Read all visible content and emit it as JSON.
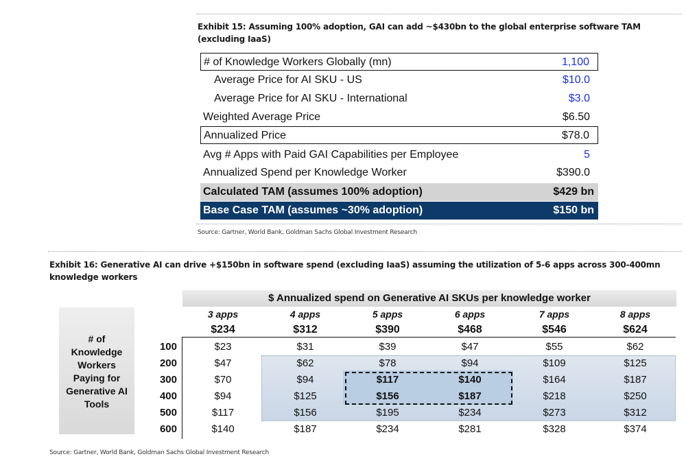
{
  "exhibit15": {
    "title_line1": "Exhibit 15: Assuming 100% adoption, GAI can add ~$430bn to the global enterprise software TAM",
    "title_line2": "(excluding IaaS)",
    "rows": [
      {
        "label": "# of Knowledge Workers Globally (mn)",
        "value": "1,100"
      },
      {
        "label": "Average Price for AI SKU - US",
        "value": "$10.0"
      },
      {
        "label": "Average Price for AI SKU - International",
        "value": "$3.0"
      },
      {
        "label": "Weighted Average Price",
        "value": "$6.50"
      },
      {
        "label": "Annualized Price",
        "value": "$78.0"
      },
      {
        "label": "Avg # Apps with Paid GAI Capabilities per Employee",
        "value": "5"
      },
      {
        "label": "Annualized Spend per Knowledge Worker",
        "value": "$390.0"
      },
      {
        "label": "Calculated TAM (assumes 100% adoption)",
        "value": "$429 bn"
      },
      {
        "label": "Base Case TAM (assumes ~30% adoption)",
        "value": "$150 bn"
      }
    ],
    "source": "Source: Gartner, World Bank, Goldman Sachs Global Investment Research"
  },
  "exhibit16": {
    "title_line1": "Exhibit 16: Generative AI can drive +$150bn in software spend (excluding IaaS) assuming the utilization of 5-6 apps across 300-400mn",
    "title_line2": "knowledge workers",
    "header": "$ Annualized spend on Generative AI SKUs per knowledge worker",
    "side_label": [
      "# of",
      "Knowledge",
      "Workers",
      "Paying for",
      "Generative AI",
      "Tools"
    ],
    "columns": [
      {
        "apps": "3 apps",
        "price": "$234"
      },
      {
        "apps": "4 apps",
        "price": "$312"
      },
      {
        "apps": "5 apps",
        "price": "$390"
      },
      {
        "apps": "6 apps",
        "price": "$468"
      },
      {
        "apps": "7 apps",
        "price": "$546"
      },
      {
        "apps": "8 apps",
        "price": "$624"
      }
    ],
    "rows": [
      {
        "workers": "100",
        "cells": [
          "$23",
          "$31",
          "$39",
          "$47",
          "$55",
          "$62"
        ]
      },
      {
        "workers": "200",
        "cells": [
          "$47",
          "$62",
          "$78",
          "$94",
          "$109",
          "$125"
        ]
      },
      {
        "workers": "300",
        "cells": [
          "$70",
          "$94",
          "$117",
          "$140",
          "$164",
          "$187"
        ]
      },
      {
        "workers": "400",
        "cells": [
          "$94",
          "$125",
          "$156",
          "$187",
          "$218",
          "$250"
        ]
      },
      {
        "workers": "500",
        "cells": [
          "$117",
          "$156",
          "$195",
          "$234",
          "$273",
          "$312"
        ]
      },
      {
        "workers": "600",
        "cells": [
          "$140",
          "$187",
          "$234",
          "$281",
          "$328",
          "$374"
        ]
      }
    ],
    "source": "Source: Gartner, World Bank, Goldman Sachs Global Investment Research"
  }
}
